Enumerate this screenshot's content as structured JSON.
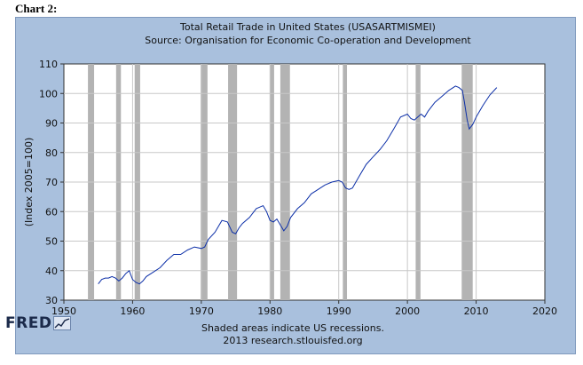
{
  "page": {
    "heading": "Chart 2:"
  },
  "chart_data": {
    "type": "line",
    "title": "Total Retail Trade in United States (USASARTMISMEI)",
    "subtitle": "Source: Organisation for Economic Co-operation and Development",
    "ylabel": "(Index 2005=100)",
    "xlabel": "",
    "xlim": [
      1950,
      2020
    ],
    "ylim": [
      30,
      110
    ],
    "xticks": [
      1950,
      1960,
      1970,
      1980,
      1990,
      2000,
      2010,
      2020
    ],
    "yticks": [
      30,
      40,
      50,
      60,
      70,
      80,
      90,
      100,
      110
    ],
    "grid": true,
    "line_color": "#0c2fa8",
    "recession_color": "#b3b3b3",
    "recessions": [
      [
        1953.5,
        1954.4
      ],
      [
        1957.6,
        1958.3
      ],
      [
        1960.3,
        1961.1
      ],
      [
        1969.9,
        1970.9
      ],
      [
        1973.9,
        1975.2
      ],
      [
        1980.0,
        1980.6
      ],
      [
        1981.5,
        1982.9
      ],
      [
        1990.6,
        1991.2
      ],
      [
        2001.2,
        2001.9
      ],
      [
        2007.9,
        2009.5
      ]
    ],
    "series": [
      {
        "x": [
          1955.0,
          1955.5,
          1956.0,
          1956.5,
          1957.0,
          1957.5,
          1958.0,
          1958.5,
          1959.0,
          1959.5,
          1960.0,
          1960.5,
          1961.0,
          1961.5,
          1962.0,
          1963.0,
          1964.0,
          1965.0,
          1966.0,
          1967.0,
          1968.0,
          1969.0,
          1970.0,
          1970.5,
          1971.0,
          1972.0,
          1973.0,
          1973.8,
          1974.5,
          1975.0,
          1975.5,
          1976.0,
          1977.0,
          1978.0,
          1979.0,
          1979.5,
          1980.0,
          1980.5,
          1981.0,
          1981.5,
          1982.0,
          1982.5,
          1983.0,
          1984.0,
          1985.0,
          1986.0,
          1987.0,
          1988.0,
          1989.0,
          1990.0,
          1990.5,
          1991.0,
          1991.5,
          1992.0,
          1993.0,
          1994.0,
          1995.0,
          1996.0,
          1997.0,
          1998.0,
          1999.0,
          2000.0,
          2000.5,
          2001.0,
          2001.5,
          2002.0,
          2002.5,
          2003.0,
          2004.0,
          2005.0,
          2006.0,
          2007.0,
          2007.5,
          2008.0,
          2008.3,
          2008.7,
          2009.0,
          2009.5,
          2010.0,
          2011.0,
          2012.0,
          2013.0
        ],
        "y": [
          35.5,
          37.0,
          37.5,
          37.5,
          38.0,
          37.5,
          36.5,
          37.5,
          39.0,
          40.0,
          37.0,
          36.0,
          35.5,
          36.5,
          38.0,
          39.5,
          41.0,
          43.5,
          45.5,
          45.5,
          47.0,
          48.0,
          47.5,
          48.0,
          50.5,
          53.0,
          57.0,
          56.5,
          53.0,
          52.5,
          54.5,
          56.0,
          58.0,
          61.0,
          62.0,
          60.0,
          57.0,
          56.5,
          57.5,
          55.5,
          53.5,
          55.0,
          58.0,
          61.0,
          63.0,
          66.0,
          67.5,
          69.0,
          70.0,
          70.5,
          70.0,
          68.0,
          67.5,
          68.0,
          72.0,
          76.0,
          78.5,
          81.0,
          84.0,
          88.0,
          92.0,
          93.0,
          91.5,
          91.0,
          92.0,
          93.0,
          92.0,
          94.0,
          97.0,
          99.0,
          101.0,
          102.5,
          102.0,
          101.0,
          97.0,
          91.0,
          88.0,
          89.5,
          92.0,
          96.0,
          99.5,
          102.0
        ]
      }
    ]
  },
  "footer": {
    "note": "Shaded areas indicate US recessions.",
    "source": "2013 research.stlouisfed.org"
  },
  "logo": {
    "text": "FRED"
  }
}
